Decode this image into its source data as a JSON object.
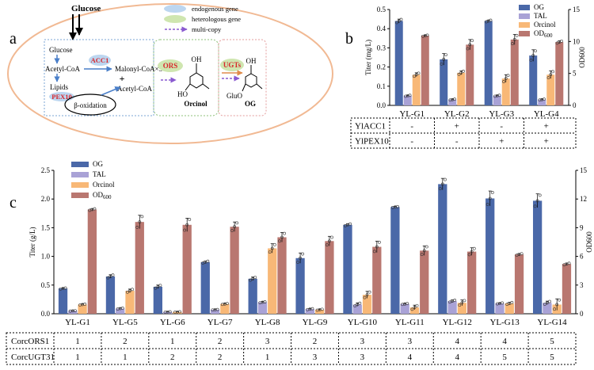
{
  "panel_letters": {
    "a": "a",
    "b": "b",
    "c": "c"
  },
  "schematic": {
    "glucose_top": "Glucose",
    "legend": {
      "endogenous": "endogenous gene",
      "heterologous": "heterologous gene",
      "multicopy": "multi-copy"
    },
    "glucose": "Glucose",
    "acetyl_coa": "Acetyl-CoA",
    "acc1": "ACC1",
    "malonyl": "Malonyl-CoA×3",
    "plus": "+",
    "acetyl_coa2": "Acetyl-CoA",
    "lipids": "Lipids",
    "pex10": "PEX10",
    "beta_ox": "β-oxidation",
    "ors": "ORS",
    "oh": "OH",
    "ho": "HO",
    "orcinol": "Orcinol",
    "ugts": "UGTs",
    "oh2": "OH",
    "gluo": "GluO",
    "og": "OG"
  },
  "chart_data": [
    {
      "id": "b",
      "type": "bar",
      "categories": [
        "YL-G1",
        "YL-G2",
        "YL-G3",
        "YL-G4"
      ],
      "ylabel": "Titer (mg/L)",
      "ylabel_right": "OD600",
      "ylim": [
        0,
        0.5
      ],
      "yticks": [
        "0.0",
        "0.1",
        "0.2",
        "0.3",
        "0.4",
        "0.5"
      ],
      "ylim_right": [
        0,
        15
      ],
      "yticks_right": [
        "0",
        "5",
        "10",
        "15"
      ],
      "legend": [
        "OG",
        "TAL",
        "Orcinol",
        "OD600"
      ],
      "series": [
        {
          "name": "OG",
          "axis": "left",
          "color": "#4a68a8",
          "values": [
            0.44,
            0.24,
            0.44,
            0.26
          ],
          "err": [
            0.01,
            0.03,
            0.005,
            0.03
          ]
        },
        {
          "name": "TAL",
          "axis": "left",
          "color": "#a9a2d6",
          "values": [
            0.05,
            0.03,
            0.05,
            0.03
          ],
          "err": [
            0.003,
            0.003,
            0.003,
            0.003
          ]
        },
        {
          "name": "Orcinol",
          "axis": "left",
          "color": "#f8b877",
          "values": [
            0.16,
            0.17,
            0.14,
            0.16
          ],
          "err": [
            0.01,
            0.01,
            0.02,
            0.02
          ]
        },
        {
          "name": "OD600",
          "axis": "right",
          "color": "#b97770",
          "values": [
            10.9,
            9.5,
            10.3,
            9.9
          ],
          "err": [
            0.1,
            0.8,
            0.8,
            0.2
          ]
        }
      ],
      "table": {
        "rows": [
          {
            "label": "YlACC1",
            "values": [
              "-",
              "+",
              "-",
              "+"
            ]
          },
          {
            "label": "YlPEX10",
            "values": [
              "-",
              "-",
              "+",
              "+"
            ]
          }
        ]
      }
    },
    {
      "id": "c",
      "type": "bar",
      "categories": [
        "YL-G1",
        "YL-G5",
        "YL-G6",
        "YL-G7",
        "YL-G8",
        "YL-G9",
        "YL-G10",
        "YL-G11",
        "YL-G12",
        "YL-G13",
        "YL-G14"
      ],
      "ylabel": "Titer (g/L)",
      "ylabel_right": "OD600",
      "ylim": [
        0,
        2.5
      ],
      "yticks": [
        "0.0",
        "0.5",
        "1.0",
        "1.5",
        "2.0",
        "2.5"
      ],
      "ylim_right": [
        0,
        15
      ],
      "yticks_right": [
        "0",
        "3",
        "6",
        "9",
        "12",
        "15"
      ],
      "legend": [
        "OG",
        "TAL",
        "Orcinol",
        "OD600"
      ],
      "series": [
        {
          "name": "OG",
          "axis": "left",
          "color": "#4a68a8",
          "values": [
            0.44,
            0.65,
            0.47,
            0.9,
            0.61,
            0.97,
            1.55,
            1.86,
            2.26,
            2.01,
            1.97
          ],
          "err": [
            0.01,
            0.03,
            0.03,
            0.02,
            0.03,
            0.09,
            0.02,
            0.01,
            0.1,
            0.13,
            0.12
          ]
        },
        {
          "name": "TAL",
          "axis": "left",
          "color": "#a9a2d6",
          "values": [
            0.05,
            0.09,
            0.03,
            0.07,
            0.2,
            0.08,
            0.16,
            0.17,
            0.22,
            0.18,
            0.19
          ],
          "err": [
            0.005,
            0.01,
            0.005,
            0.005,
            0.01,
            0.01,
            0.03,
            0.01,
            0.02,
            0.01,
            0.03
          ]
        },
        {
          "name": "Orcinol",
          "axis": "left",
          "color": "#f8b877",
          "values": [
            0.16,
            0.4,
            0.03,
            0.17,
            1.14,
            0.07,
            0.33,
            0.11,
            0.19,
            0.18,
            0.16
          ],
          "err": [
            0.01,
            0.03,
            0.005,
            0.01,
            0.08,
            0.01,
            0.06,
            0.04,
            0.05,
            0.02,
            0.1
          ]
        },
        {
          "name": "OD600",
          "axis": "right",
          "color": "#b97770",
          "values": [
            10.9,
            9.6,
            9.3,
            9.1,
            8.0,
            7.6,
            7.0,
            6.6,
            6.5,
            6.2,
            5.2
          ],
          "err": [
            0.1,
            0.7,
            0.7,
            0.5,
            0.5,
            0.5,
            0.6,
            0.5,
            0.4,
            0.1,
            0.1
          ]
        }
      ],
      "table": {
        "rows": [
          {
            "label": "CorcORS1",
            "values": [
              "1",
              "2",
              "1",
              "2",
              "3",
              "2",
              "3",
              "3",
              "4",
              "4",
              "5"
            ]
          },
          {
            "label": "CorcUGT31",
            "values": [
              "1",
              "1",
              "2",
              "2",
              "1",
              "3",
              "3",
              "4",
              "4",
              "5",
              "5"
            ]
          }
        ]
      }
    }
  ]
}
